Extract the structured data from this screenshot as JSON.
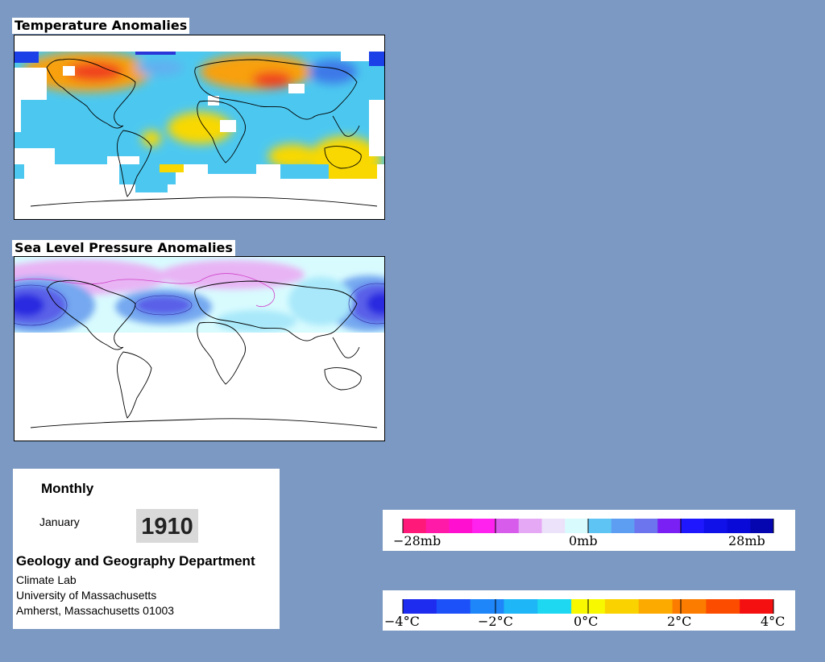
{
  "panels": {
    "temperature": {
      "title": "Temperature Anomalies"
    },
    "pressure": {
      "title": "Sea Level Pressure Anomalies"
    }
  },
  "info": {
    "period": "Monthly",
    "month": "January",
    "year": "1910",
    "department": "Geology and Geography Department",
    "lab": "Climate Lab",
    "university": "University of Massachusetts",
    "address": "Amherst, Massachusetts 01003"
  },
  "legends": {
    "pressure": {
      "labels": [
        "−28mb",
        "0mb",
        "28mb"
      ],
      "colors": [
        "#ff1a7a",
        "#ff1aa8",
        "#ff10d0",
        "#ff22ee",
        "#d85cec",
        "#e4a8f4",
        "#ece2fa",
        "#d8fbfe",
        "#5ec4f4",
        "#5e9ef2",
        "#6c74ee",
        "#7a20f4",
        "#1f18ff",
        "#1010e8",
        "#0a0ad8",
        "#0606b0"
      ]
    },
    "temperature": {
      "labels": [
        "−4°C",
        "−2°C",
        "0°C",
        "2°C",
        "4°C"
      ],
      "colors": [
        "#1e2cf0",
        "#1c50f8",
        "#1e86f8",
        "#1eb6f6",
        "#1ed8f2",
        "#f8f800",
        "#fad200",
        "#fcaa00",
        "#fc7c00",
        "#fc4c00",
        "#f41010"
      ]
    }
  }
}
